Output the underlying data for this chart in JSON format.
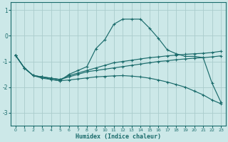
{
  "xlabel": "Humidex (Indice chaleur)",
  "bg_color": "#cce8e8",
  "grid_color": "#aacccc",
  "line_color": "#1a6b6b",
  "xlim": [
    -0.5,
    23.5
  ],
  "ylim": [
    -3.5,
    1.3
  ],
  "yticks": [
    1,
    0,
    -1,
    -2,
    -3
  ],
  "xticks": [
    0,
    1,
    2,
    3,
    4,
    5,
    6,
    7,
    8,
    9,
    10,
    11,
    12,
    13,
    14,
    15,
    16,
    17,
    18,
    19,
    20,
    21,
    22,
    23
  ],
  "series": [
    {
      "x": [
        0,
        1,
        2,
        3,
        4,
        5,
        6,
        7,
        8,
        9,
        10,
        11,
        12,
        13,
        14,
        15,
        16,
        17,
        18,
        19,
        20,
        21,
        22,
        23
      ],
      "y": [
        -0.75,
        -1.25,
        -1.55,
        -1.6,
        -1.7,
        -1.75,
        -1.5,
        -1.35,
        -1.2,
        -0.5,
        -0.15,
        0.45,
        0.65,
        0.65,
        0.65,
        0.3,
        -0.1,
        -0.55,
        -0.7,
        -0.8,
        -0.8,
        -0.85,
        -1.85,
        -2.6
      ]
    },
    {
      "x": [
        0,
        1,
        2,
        3,
        4,
        5,
        6,
        7,
        8,
        9,
        10,
        11,
        12,
        13,
        14,
        15,
        16,
        17,
        18,
        19,
        20,
        21,
        22,
        23
      ],
      "y": [
        -0.75,
        -1.25,
        -1.55,
        -1.6,
        -1.65,
        -1.7,
        -1.55,
        -1.45,
        -1.35,
        -1.25,
        -1.15,
        -1.05,
        -1.0,
        -0.95,
        -0.9,
        -0.85,
        -0.82,
        -0.78,
        -0.75,
        -0.72,
        -0.7,
        -0.68,
        -0.65,
        -0.6
      ]
    },
    {
      "x": [
        0,
        1,
        2,
        3,
        4,
        5,
        6,
        7,
        8,
        9,
        10,
        11,
        12,
        13,
        14,
        15,
        16,
        17,
        18,
        19,
        20,
        21,
        22,
        23
      ],
      "y": [
        -0.75,
        -1.25,
        -1.55,
        -1.6,
        -1.65,
        -1.7,
        -1.6,
        -1.5,
        -1.4,
        -1.35,
        -1.3,
        -1.25,
        -1.2,
        -1.15,
        -1.1,
        -1.05,
        -1.0,
        -0.97,
        -0.93,
        -0.9,
        -0.87,
        -0.85,
        -0.82,
        -0.78
      ]
    },
    {
      "x": [
        0,
        1,
        2,
        3,
        4,
        5,
        6,
        7,
        8,
        9,
        10,
        11,
        12,
        13,
        14,
        15,
        16,
        17,
        18,
        19,
        20,
        21,
        22,
        23
      ],
      "y": [
        -0.75,
        -1.25,
        -1.55,
        -1.65,
        -1.7,
        -1.75,
        -1.72,
        -1.68,
        -1.64,
        -1.6,
        -1.58,
        -1.56,
        -1.55,
        -1.57,
        -1.6,
        -1.65,
        -1.72,
        -1.8,
        -1.9,
        -2.0,
        -2.15,
        -2.3,
        -2.5,
        -2.65
      ]
    }
  ]
}
